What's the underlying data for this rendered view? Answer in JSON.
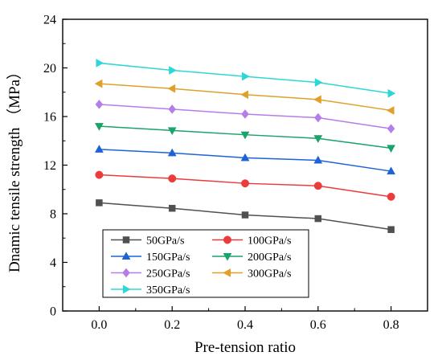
{
  "chart_data": {
    "type": "line",
    "xlabel": "Pre-tension ratio",
    "ylabel": "Dnamic tensile strength （MPa）",
    "x": [
      0.0,
      0.2,
      0.4,
      0.6,
      0.8
    ],
    "x_tick_labels": [
      "0.0",
      "0.2",
      "0.4",
      "0.6",
      "0.8"
    ],
    "xlim": [
      -0.1,
      0.9
    ],
    "ylim": [
      0,
      24
    ],
    "y_tick_labels": [
      "0",
      "4",
      "8",
      "12",
      "16",
      "20",
      "24"
    ],
    "y_ticks": [
      0,
      4,
      8,
      12,
      16,
      20,
      24
    ],
    "grid": false,
    "legend_position": "bottom-left",
    "series": [
      {
        "name": "50GPa/s",
        "color": "#505050",
        "marker": "square",
        "values": [
          8.9,
          8.45,
          7.9,
          7.6,
          6.7
        ]
      },
      {
        "name": "100GPa/s",
        "color": "#ec3b3b",
        "marker": "circle",
        "values": [
          11.2,
          10.9,
          10.5,
          10.3,
          9.4
        ]
      },
      {
        "name": "150GPa/s",
        "color": "#1e63d6",
        "marker": "triangle-up",
        "values": [
          13.3,
          13.0,
          12.6,
          12.4,
          11.5
        ]
      },
      {
        "name": "200GPa/s",
        "color": "#1aa36a",
        "marker": "triangle-down",
        "values": [
          15.2,
          14.85,
          14.5,
          14.2,
          13.4
        ]
      },
      {
        "name": "250GPa/s",
        "color": "#b57de8",
        "marker": "diamond",
        "values": [
          17.0,
          16.6,
          16.2,
          15.9,
          15.0
        ]
      },
      {
        "name": "300GPa/s",
        "color": "#e0a02a",
        "marker": "triangle-left",
        "values": [
          18.7,
          18.3,
          17.8,
          17.4,
          16.5
        ]
      },
      {
        "name": "350GPa/s",
        "color": "#2ed7d7",
        "marker": "triangle-right",
        "values": [
          20.4,
          19.8,
          19.3,
          18.8,
          17.9
        ]
      }
    ]
  }
}
